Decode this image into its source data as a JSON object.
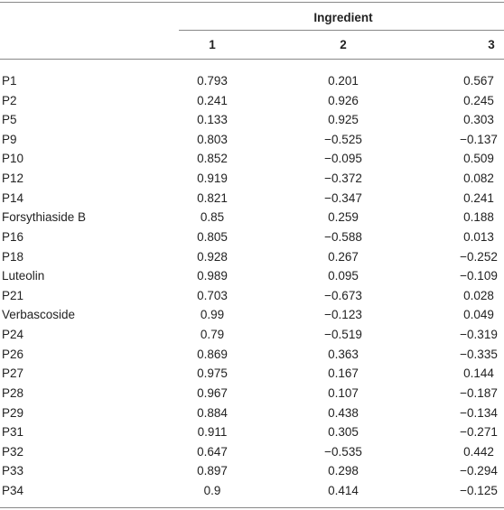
{
  "table": {
    "group_header": "Ingredient",
    "columns": [
      "1",
      "2",
      "3"
    ],
    "rows": [
      [
        "P1",
        "0.793",
        "0.201",
        "0.567"
      ],
      [
        "P2",
        "0.241",
        "0.926",
        "0.245"
      ],
      [
        "P5",
        "0.133",
        "0.925",
        "0.303"
      ],
      [
        "P9",
        "0.803",
        "−0.525",
        "−0.137"
      ],
      [
        "P10",
        "0.852",
        "−0.095",
        "0.509"
      ],
      [
        "P12",
        "0.919",
        "−0.372",
        "0.082"
      ],
      [
        "P14",
        "0.821",
        "−0.347",
        "0.241"
      ],
      [
        "Forsythiaside B",
        "0.85",
        "0.259",
        "0.188"
      ],
      [
        "P16",
        "0.805",
        "−0.588",
        "0.013"
      ],
      [
        "P18",
        "0.928",
        "0.267",
        "−0.252"
      ],
      [
        "Luteolin",
        "0.989",
        "0.095",
        "−0.109"
      ],
      [
        "P21",
        "0.703",
        "−0.673",
        "0.028"
      ],
      [
        "Verbascoside",
        "0.99",
        "−0.123",
        "0.049"
      ],
      [
        "P24",
        "0.79",
        "−0.519",
        "−0.319"
      ],
      [
        "P26",
        "0.869",
        "0.363",
        "−0.335"
      ],
      [
        "P27",
        "0.975",
        "0.167",
        "0.144"
      ],
      [
        "P28",
        "0.967",
        "0.107",
        "−0.187"
      ],
      [
        "P29",
        "0.884",
        "0.438",
        "−0.134"
      ],
      [
        "P31",
        "0.911",
        "0.305",
        "−0.271"
      ],
      [
        "P32",
        "0.647",
        "−0.535",
        "0.442"
      ],
      [
        "P33",
        "0.897",
        "0.298",
        "−0.294"
      ],
      [
        "P34",
        "0.9",
        "0.414",
        "−0.125"
      ]
    ]
  }
}
